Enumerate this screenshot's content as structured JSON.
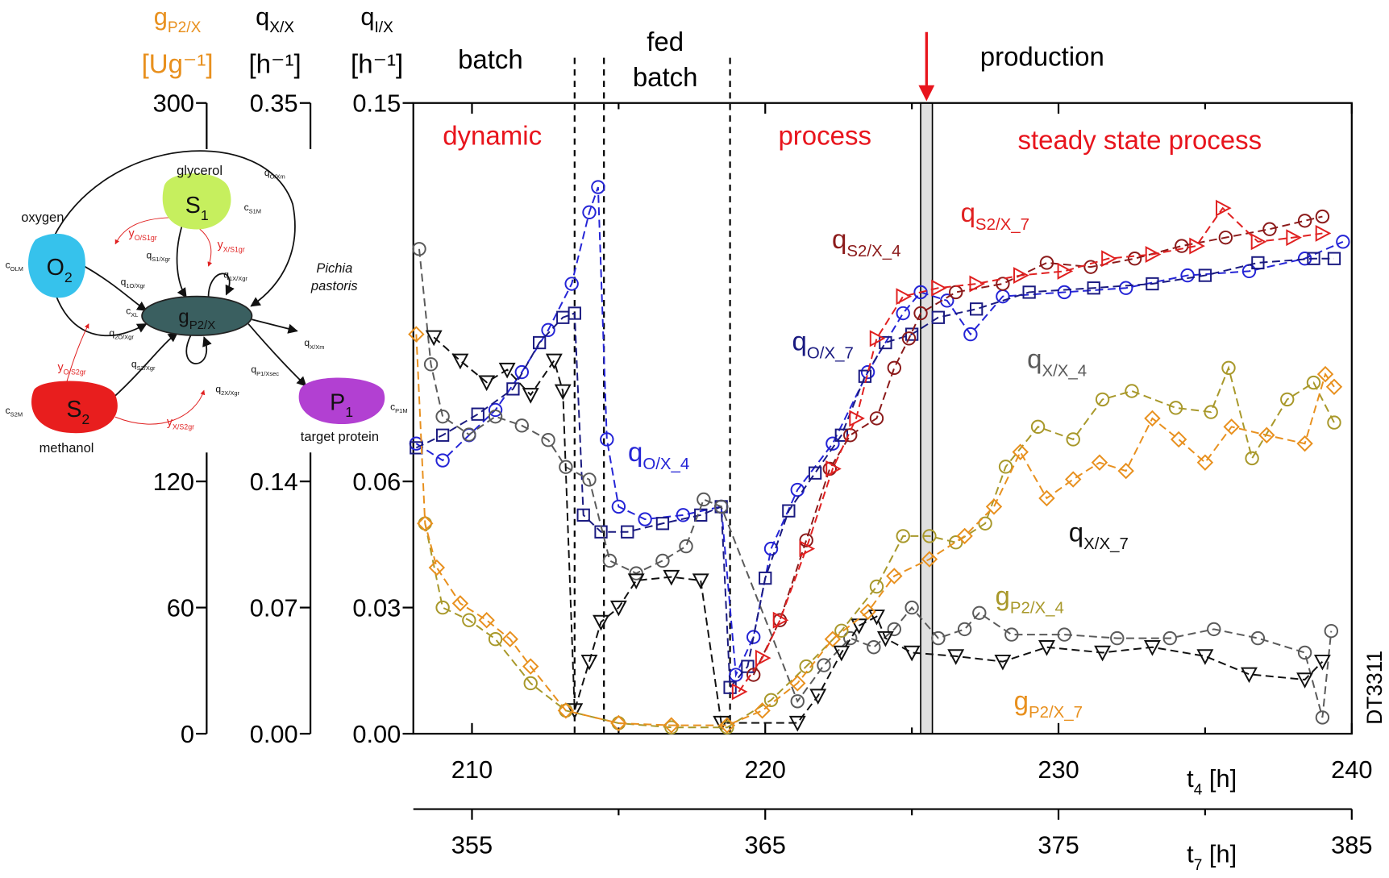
{
  "chart_data": {
    "type": "scatter",
    "xlim": [
      208,
      240
    ],
    "xticks": [
      210,
      220,
      230,
      240
    ],
    "xminorticks": [
      215,
      225,
      235
    ],
    "x2lim": [
      353,
      385
    ],
    "x2ticks": [
      355,
      365,
      375,
      385
    ],
    "x2minorticks": [
      360,
      370,
      380
    ],
    "xlabel": {
      "main": "t",
      "sub": "4",
      "unit": " [h]"
    },
    "x2label": {
      "main": "t",
      "sub": "7",
      "unit": " [h]"
    },
    "ylim": [
      0,
      0.15
    ],
    "yticks": [
      {
        "value": 0,
        "label": "0.00"
      },
      0.03,
      0.06,
      0.15
    ],
    "y2lim": [
      0,
      0.35
    ],
    "y2ticks": [
      {
        "value": 0,
        "label": "0.00"
      },
      0.07,
      0.14,
      0.35
    ],
    "y3lim": [
      0,
      300
    ],
    "y3ticks": [
      0,
      60,
      120,
      300
    ],
    "ylabel": {
      "symbol": {
        "main": "q",
        "sub": "I/X"
      },
      "unit": "[h⁻¹]",
      "color": "#000000"
    },
    "y2label": {
      "symbol": {
        "main": "q",
        "sub": "X/X"
      },
      "unit": "[h⁻¹]",
      "color": "#000000"
    },
    "y3label": {
      "symbol": {
        "main": "g",
        "sub": "P2/X"
      },
      "unit": "[Ug⁻¹]",
      "color": "#e8901e"
    },
    "phase_labels": [
      "batch",
      "fed",
      "batch",
      "production"
    ],
    "regime_labels": [
      "dynamic",
      "process",
      "steady state process"
    ],
    "regime_color": "#e8141c",
    "phase_lines": [
      213.5,
      214.5,
      218.8
    ],
    "production_bar": [
      225.3,
      225.7
    ],
    "watermark": "DT3311",
    "series": [
      {
        "label": {
          "main": "q",
          "sub": "O/X_4"
        },
        "color": "#2424d6",
        "marker": "circle",
        "axis": "y",
        "x": [
          208.1,
          209.0,
          209.9,
          210.8,
          211.7,
          212.6,
          213.4,
          214.0,
          214.3,
          214.6,
          215.0,
          215.9,
          217.2,
          218.5,
          219.0,
          219.6,
          220.2,
          221.1,
          222.3,
          223.5,
          224.7,
          225.3,
          226.2,
          227.0,
          228.1,
          230.2,
          232.3,
          234.4,
          236.5,
          238.4,
          239.7
        ],
        "values": [
          0.069,
          0.065,
          0.071,
          0.077,
          0.086,
          0.096,
          0.107,
          0.124,
          0.13,
          0.07,
          0.054,
          0.051,
          0.052,
          0.054,
          0.014,
          0.023,
          0.044,
          0.058,
          0.069,
          0.086,
          0.1,
          0.105,
          0.103,
          0.095,
          0.104,
          0.105,
          0.106,
          0.109,
          0.11,
          0.113,
          0.117
        ]
      },
      {
        "label": {
          "main": "q",
          "sub": "O/X_7"
        },
        "color": "#1a1a80",
        "marker": "square",
        "axis": "y",
        "x": [
          208.1,
          209.0,
          210.2,
          211.4,
          212.3,
          213.1,
          213.5,
          213.8,
          214.4,
          215.3,
          216.5,
          217.8,
          218.5,
          218.8,
          219.4,
          220.0,
          220.8,
          221.7,
          222.6,
          223.4,
          224.1,
          225.0,
          225.9,
          227.2,
          229.0,
          231.2,
          233.2,
          235.0,
          236.8,
          238.7,
          239.4
        ],
        "values": [
          0.068,
          0.071,
          0.076,
          0.082,
          0.093,
          0.099,
          0.1,
          0.052,
          0.048,
          0.048,
          0.05,
          0.052,
          0.054,
          0.011,
          0.016,
          0.037,
          0.053,
          0.062,
          0.071,
          0.085,
          0.093,
          0.095,
          0.099,
          0.101,
          0.105,
          0.106,
          0.107,
          0.109,
          0.112,
          0.113,
          0.113
        ]
      },
      {
        "label": {
          "main": "q",
          "sub": "S2/X_4"
        },
        "color": "#8b1a1a",
        "marker": "circle",
        "axis": "y",
        "x": [
          219.6,
          220.5,
          221.4,
          222.2,
          222.9,
          223.8,
          224.4,
          224.9,
          225.3,
          226.5,
          228.1,
          229.6,
          231.1,
          232.6,
          234.2,
          235.7,
          237.2,
          238.4,
          239.0
        ],
        "values": [
          0.014,
          0.027,
          0.046,
          0.063,
          0.071,
          0.075,
          0.087,
          0.094,
          0.1,
          0.105,
          0.107,
          0.112,
          0.111,
          0.113,
          0.116,
          0.118,
          0.12,
          0.122,
          0.123
        ]
      },
      {
        "label": {
          "main": "q",
          "sub": "S2/X_7"
        },
        "color": "#e02020",
        "marker": "triangle-right",
        "axis": "y",
        "x": [
          219.1,
          219.9,
          220.5,
          221.4,
          222.3,
          223.1,
          223.8,
          224.7,
          225.9,
          227.2,
          228.7,
          230.2,
          231.7,
          233.2,
          234.7,
          235.6,
          236.8,
          238.0,
          239.0
        ],
        "values": [
          0.01,
          0.018,
          0.027,
          0.044,
          0.063,
          0.075,
          0.094,
          0.104,
          0.106,
          0.107,
          0.109,
          0.11,
          0.113,
          0.114,
          0.116,
          0.125,
          0.117,
          0.118,
          0.119
        ]
      },
      {
        "label": {
          "main": "q",
          "sub": "X/X_4"
        },
        "color": "#5a5a5a",
        "marker": "circle",
        "axis": "y2",
        "x": [
          208.2,
          208.6,
          209.0,
          209.9,
          210.8,
          211.7,
          212.6,
          213.2,
          214.0,
          214.7,
          215.6,
          216.5,
          217.3,
          217.9,
          218.5,
          221.1,
          222.0,
          222.9,
          223.7,
          224.4,
          225.0,
          225.9,
          226.8,
          227.3,
          228.4,
          230.2,
          232.0,
          233.8,
          235.3,
          236.8,
          238.4,
          239.0,
          239.3
        ],
        "values": [
          0.269,
          0.205,
          0.176,
          0.166,
          0.176,
          0.171,
          0.163,
          0.148,
          0.141,
          0.096,
          0.089,
          0.096,
          0.104,
          0.13,
          0.126,
          0.018,
          0.038,
          0.053,
          0.048,
          0.058,
          0.07,
          0.053,
          0.058,
          0.067,
          0.055,
          0.055,
          0.053,
          0.053,
          0.058,
          0.053,
          0.045,
          0.009,
          0.057
        ]
      },
      {
        "label": {
          "main": "q",
          "sub": "X/X_7"
        },
        "color": "#111111",
        "marker": "triangle-down",
        "axis": "y2",
        "x": [
          208.7,
          209.6,
          210.5,
          211.2,
          212.0,
          212.8,
          213.1,
          213.5,
          214.0,
          214.4,
          215.0,
          215.6,
          216.8,
          217.8,
          218.5,
          221.1,
          221.8,
          222.6,
          223.2,
          223.8,
          224.1,
          225.0,
          226.5,
          228.1,
          229.6,
          231.5,
          233.2,
          235.0,
          236.5,
          238.4,
          239.0
        ],
        "values": [
          0.22,
          0.207,
          0.195,
          0.202,
          0.188,
          0.207,
          0.19,
          0.013,
          0.04,
          0.062,
          0.07,
          0.085,
          0.087,
          0.085,
          0.006,
          0.006,
          0.021,
          0.045,
          0.06,
          0.065,
          0.053,
          0.045,
          0.043,
          0.04,
          0.048,
          0.045,
          0.048,
          0.043,
          0.033,
          0.03,
          0.04
        ]
      },
      {
        "label": {
          "main": "g",
          "sub": "P2/X_4"
        },
        "color": "#a8982a",
        "marker": "circle",
        "axis": "y3",
        "x": [
          208.4,
          209.0,
          209.9,
          210.8,
          212.0,
          213.2,
          215.0,
          216.8,
          218.7,
          220.2,
          221.4,
          222.6,
          223.8,
          224.7,
          225.6,
          226.5,
          227.5,
          228.2,
          229.3,
          230.5,
          231.5,
          232.5,
          234.0,
          235.2,
          235.8,
          236.6,
          237.8,
          238.7,
          239.4
        ],
        "values": [
          100,
          60,
          54,
          45,
          24,
          11,
          5,
          3,
          3,
          16,
          32,
          49,
          70,
          94,
          94,
          91,
          100,
          127,
          146,
          140,
          159,
          163,
          155,
          153,
          174,
          131,
          159,
          167,
          148
        ]
      },
      {
        "label": {
          "main": "g",
          "sub": "P2/X_7"
        },
        "color": "#e8901e",
        "marker": "diamond",
        "axis": "y3",
        "x": [
          208.1,
          208.4,
          208.8,
          209.6,
          210.5,
          211.3,
          212.0,
          213.2,
          215.0,
          216.8,
          218.7,
          219.9,
          221.1,
          222.3,
          223.5,
          224.4,
          225.6,
          226.8,
          227.8,
          228.7,
          229.6,
          230.5,
          231.4,
          232.3,
          233.2,
          234.1,
          235.0,
          235.9,
          237.1,
          238.4,
          239.1,
          239.4
        ],
        "values": [
          190,
          100,
          79,
          62,
          54,
          45,
          32,
          11,
          5,
          4,
          4,
          11,
          24,
          45,
          58,
          75,
          83,
          94,
          108,
          134,
          112,
          121,
          129,
          125,
          150,
          140,
          129,
          146,
          142,
          138,
          171,
          165
        ]
      }
    ]
  },
  "diagram": {
    "labels": [
      {
        "main": "glycerol"
      },
      {
        "main": "S",
        "sub": "1"
      },
      {
        "main": "c",
        "sub": "S1M"
      },
      {
        "main": "q",
        "sub": "O/Xm"
      },
      {
        "main": "oxygen"
      },
      {
        "main": "y",
        "sub": "O/S1gr",
        "color": "#e02020"
      },
      {
        "main": "y",
        "sub": "X/S1gr",
        "color": "#e02020"
      },
      {
        "main": "q",
        "sub": "S1/Xgr"
      },
      {
        "main": "q",
        "sub": "1X/Xgr"
      },
      {
        "main": "Pichia",
        "style": "italic"
      },
      {
        "main": "pastoris",
        "style": "italic"
      },
      {
        "main": "c",
        "sub": "OLM"
      },
      {
        "main": "O",
        "sub": "2"
      },
      {
        "main": "q",
        "sub": "1O/Xgr"
      },
      {
        "main": "c",
        "sub": "XL"
      },
      {
        "main": "g",
        "sub": "P2/X"
      },
      {
        "main": "q",
        "sub": "2O/Xgr"
      },
      {
        "main": "q",
        "sub": "X/Xm"
      },
      {
        "main": "y",
        "sub": "O/S2gr",
        "color": "#e02020"
      },
      {
        "main": "q",
        "sub": "S2/Xgr"
      },
      {
        "main": "q",
        "sub": "P1/Xsec"
      },
      {
        "main": "q",
        "sub": "2X/Xgr"
      },
      {
        "main": "c",
        "sub": "S2M"
      },
      {
        "main": "S",
        "sub": "2"
      },
      {
        "main": "P",
        "sub": "1"
      },
      {
        "main": "c",
        "sub": "P1M"
      },
      {
        "main": "y",
        "sub": "X/S2gr",
        "color": "#e02020"
      },
      {
        "main": "methanol"
      },
      {
        "main": "target protein"
      }
    ]
  }
}
